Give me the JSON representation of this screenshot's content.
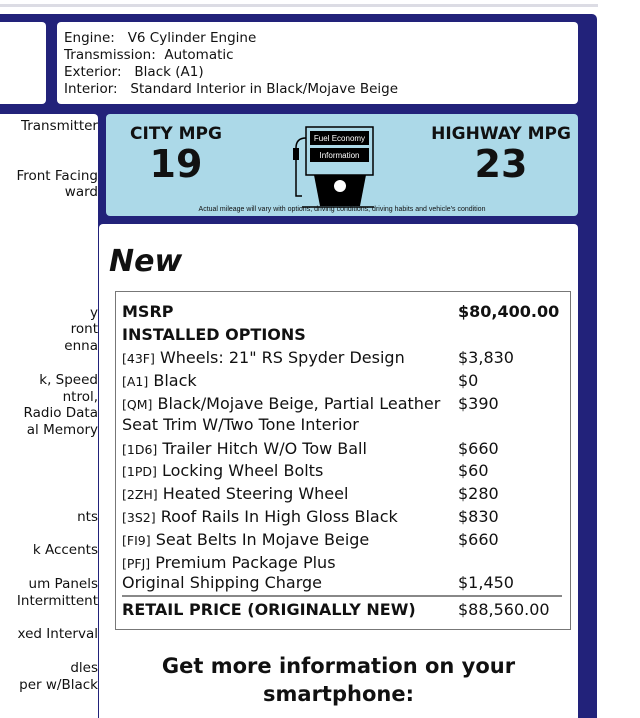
{
  "left_column": [
    "Transmitter",
    "Front Facing",
    "ward",
    "y",
    "ront",
    "enna",
    "k, Speed",
    "ntrol,",
    "Radio Data",
    "al Memory",
    "nts",
    "k Accents",
    "um Panels",
    "Intermittent",
    "xed Interval",
    "dles",
    "per w/Black"
  ],
  "info": {
    "engine": "Engine:   V6 Cylinder Engine",
    "transmission": "Transmission:  Automatic",
    "exterior": "Exterior:   Black (A1)",
    "interior": "Interior:   Standard Interior in Black/Mojave Beige"
  },
  "fuel": {
    "city_label": "CITY MPG",
    "city_value": "19",
    "highway_label": "HIGHWAY MPG",
    "highway_value": "23",
    "sign_line1": "Fuel Economy",
    "sign_line2": "Information",
    "note": "Actual mileage will vary with options, driving conditions, driving habits and vehicle's condition"
  },
  "condition": "New",
  "sticker": {
    "msrp_label": "MSRP",
    "msrp": "$80,400.00",
    "options_label": "INSTALLED OPTIONS",
    "options": [
      {
        "code": "[43F]",
        "name": "Wheels: 21\" RS Spyder Design",
        "price": "$3,830"
      },
      {
        "code": "[A1]",
        "name": "Black",
        "price": "$0"
      },
      {
        "code": "[QM]",
        "name": "Black/Mojave Beige, Partial Leather",
        "name2": "Seat Trim W/Two Tone Interior",
        "price": "$390"
      },
      {
        "code": "[1D6]",
        "name": "Trailer Hitch W/O Tow Ball",
        "price": "$660"
      },
      {
        "code": "[1PD]",
        "name": "Locking Wheel Bolts",
        "price": "$60"
      },
      {
        "code": "[2ZH]",
        "name": "Heated Steering Wheel",
        "price": "$280"
      },
      {
        "code": "[3S2]",
        "name": "Roof Rails In High Gloss Black",
        "price": "$830"
      },
      {
        "code": "[FI9]",
        "name": "Seat Belts In Mojave Beige",
        "price": "$660"
      },
      {
        "code": "[PFJ]",
        "name": "Premium Package Plus",
        "price": ""
      }
    ],
    "shipping_label": "Original Shipping Charge",
    "shipping": "$1,450",
    "retail_label": "RETAIL PRICE (ORIGINALLY NEW)",
    "retail": "$88,560.00"
  },
  "cta": "Get more information on your smartphone:",
  "colors": {
    "frame": "#22227a",
    "fuel_bg": "#acd9e8"
  }
}
